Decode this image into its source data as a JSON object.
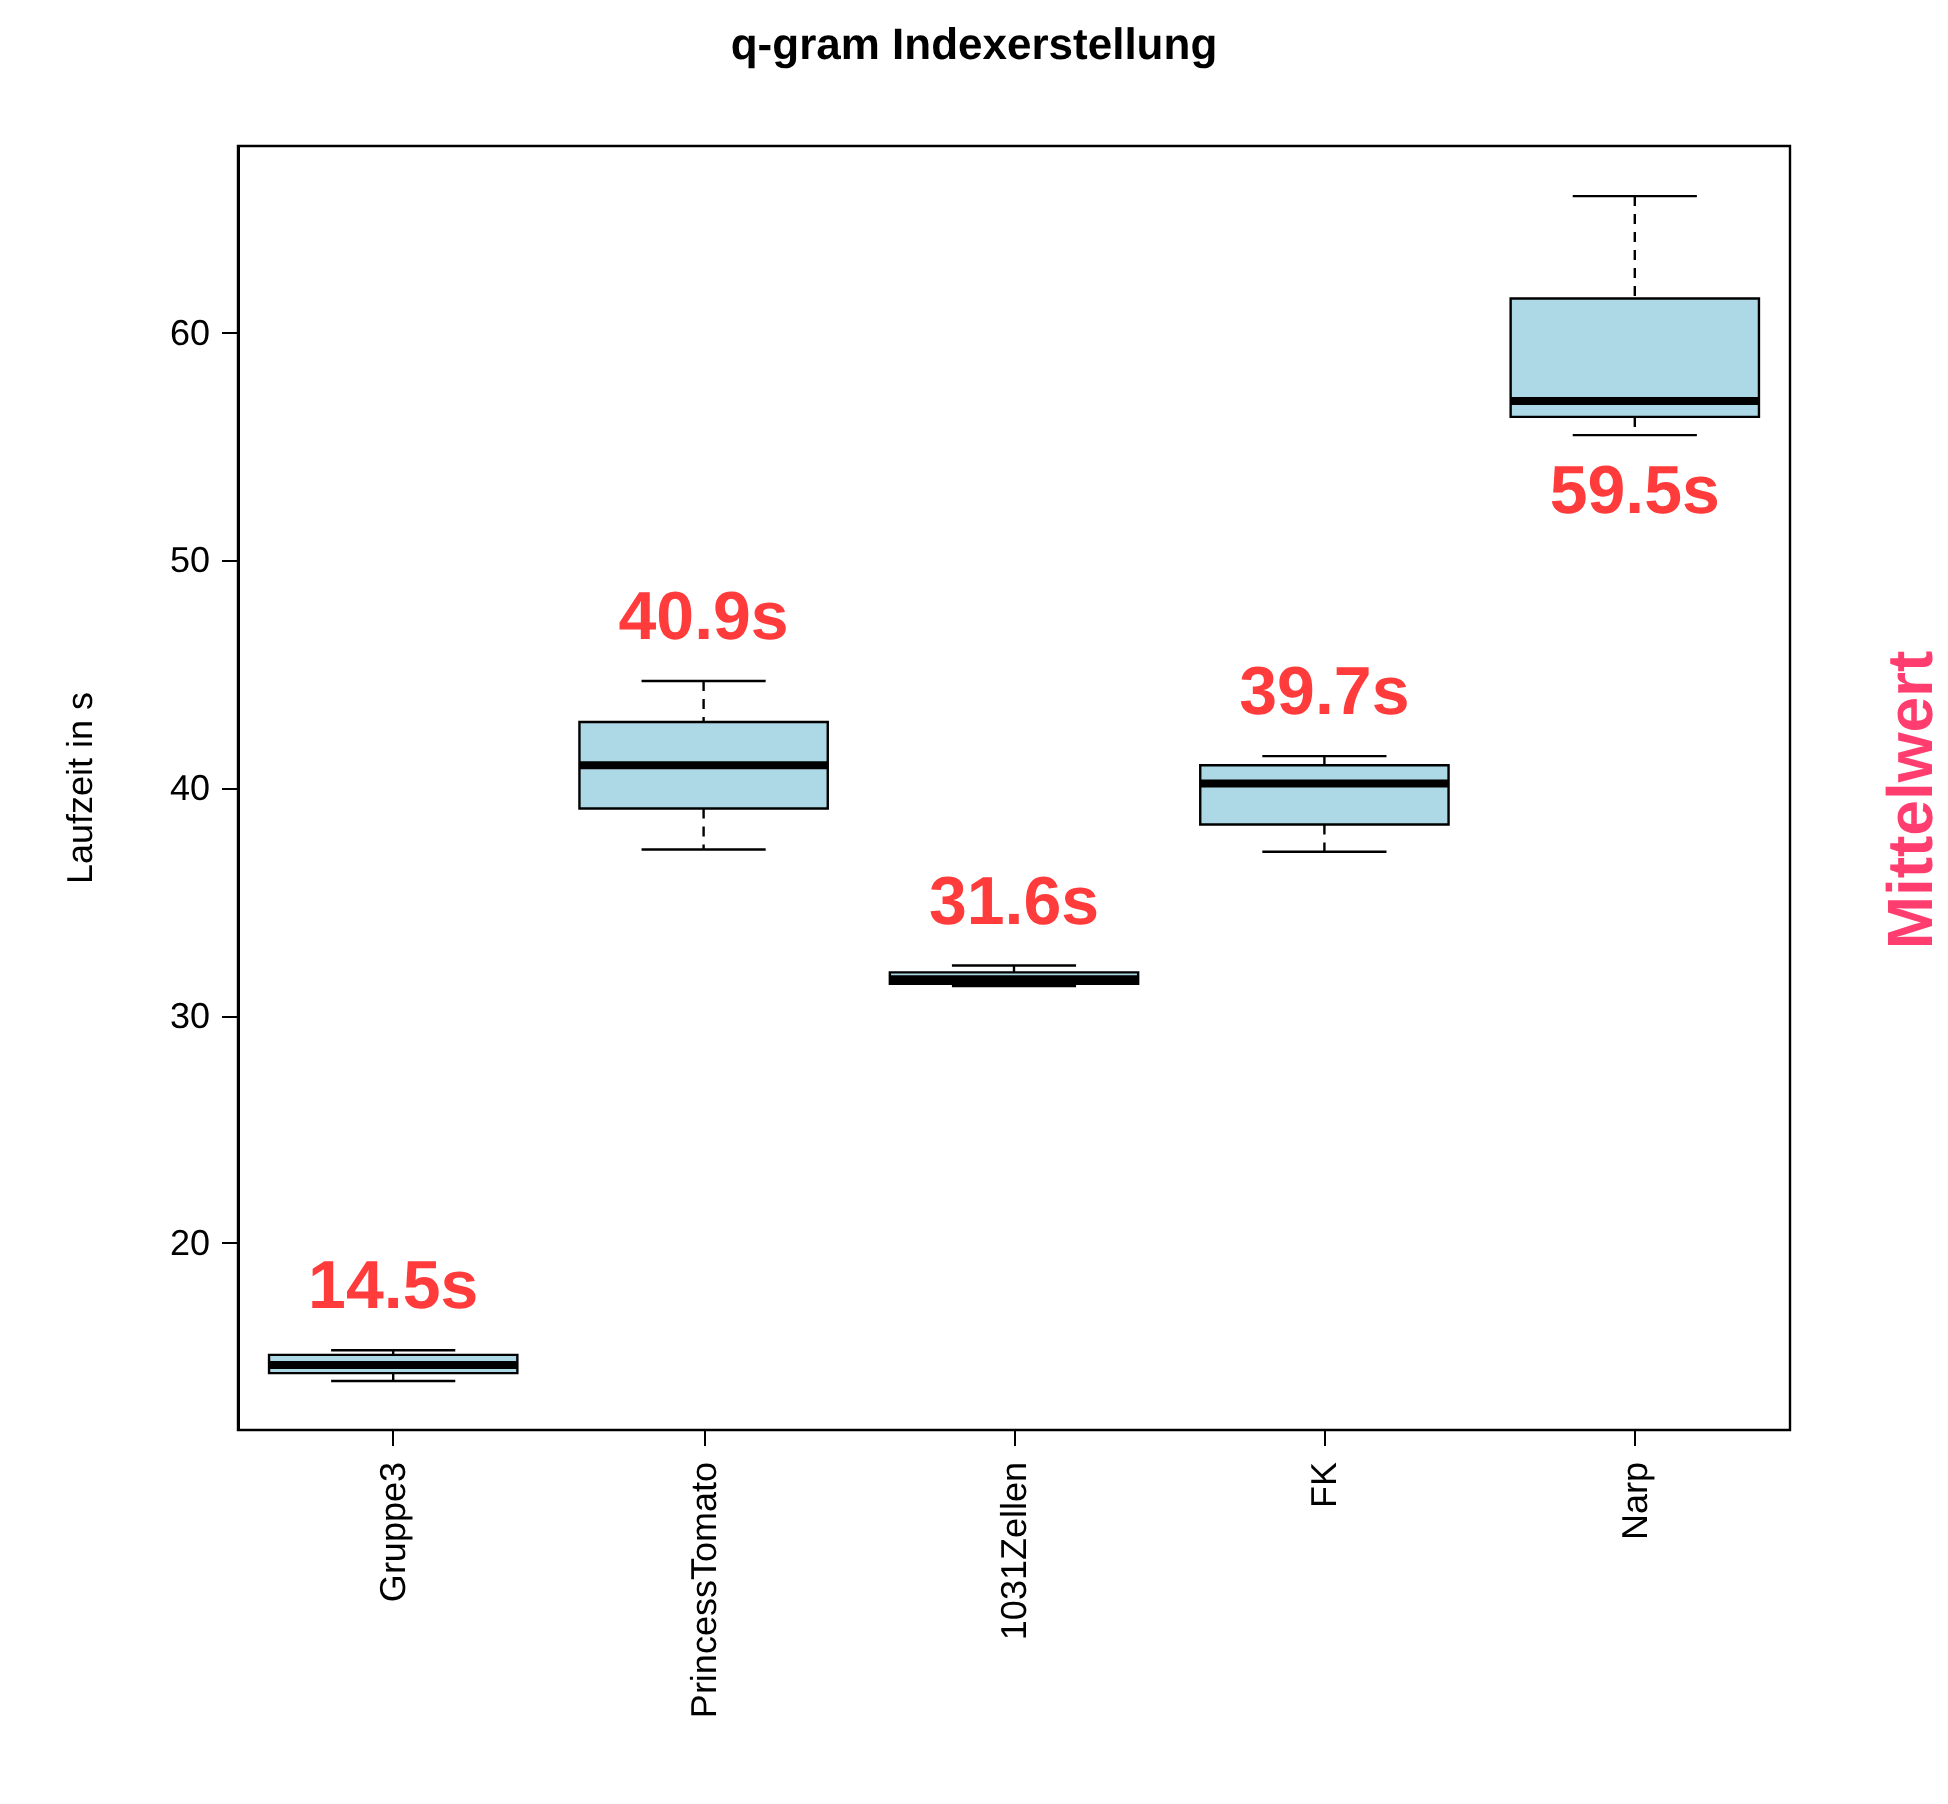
{
  "chart_data": {
    "type": "box",
    "title": "q-gram Indexerstellung",
    "ylabel": "Laufzeit in s",
    "categories": [
      "Gruppe3",
      "PrincessTomato",
      "1031Zellen",
      "FK",
      "Narp"
    ],
    "series": [
      {
        "color": "#add8e6",
        "boxes": [
          {
            "low": 13.95,
            "q1": 14.3,
            "median": 14.65,
            "q3": 15.1,
            "high": 15.3
          },
          {
            "low": 37.3,
            "q1": 39.1,
            "median": 41.0,
            "q3": 42.9,
            "high": 44.7
          },
          {
            "low": 31.3,
            "q1": 31.4,
            "median": 31.6,
            "q3": 31.9,
            "high": 32.2
          },
          {
            "low": 37.2,
            "q1": 38.4,
            "median": 40.2,
            "q3": 41.0,
            "high": 41.4
          },
          {
            "low": 55.5,
            "q1": 56.3,
            "median": 57.0,
            "q3": 61.5,
            "high": 66.0
          }
        ]
      }
    ],
    "ylim": [
      11.8,
      68.2
    ],
    "yticks": [
      20,
      30,
      40,
      50,
      60
    ],
    "grid": false,
    "annotations": [
      "14.5s",
      "40.9s",
      "31.6s",
      "39.7s",
      "59.5s",
      "Mittelwert"
    ]
  }
}
